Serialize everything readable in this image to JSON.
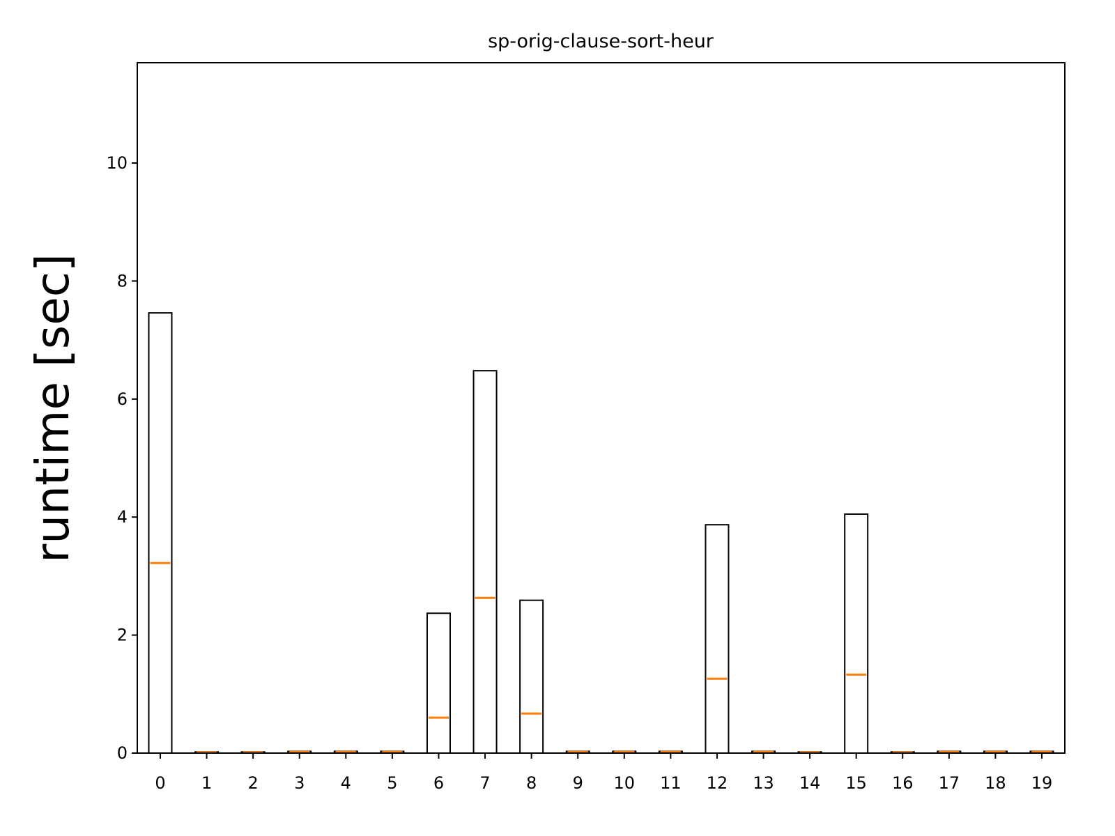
{
  "chart_data": {
    "type": "bar",
    "title": "sp-orig-clause-sort-heur",
    "xlabel": "",
    "ylabel": "runtime [sec]",
    "categories": [
      "0",
      "1",
      "2",
      "3",
      "4",
      "5",
      "6",
      "7",
      "8",
      "9",
      "10",
      "11",
      "12",
      "13",
      "14",
      "15",
      "16",
      "17",
      "18",
      "19"
    ],
    "highlighted_categories": [
      "2"
    ],
    "series": [
      {
        "values": [
          7.46,
          0.02,
          0.02,
          0.03,
          0.03,
          0.03,
          2.37,
          6.48,
          2.59,
          0.03,
          0.03,
          0.03,
          3.87,
          0.03,
          0.02,
          4.05,
          0.02,
          0.03,
          0.03,
          0.03
        ]
      },
      {
        "values": [
          3.22,
          0.01,
          0.01,
          0.02,
          0.02,
          0.02,
          0.6,
          2.63,
          0.67,
          0.02,
          0.02,
          0.02,
          1.26,
          0.02,
          0.01,
          1.33,
          0.01,
          0.02,
          0.02,
          0.02
        ]
      }
    ],
    "ylim": [
      0,
      11.7
    ],
    "yticks": [
      0,
      2,
      4,
      6,
      8,
      10
    ],
    "grid": false,
    "colors": {
      "bar_fill": "#ffffff",
      "bar_edge": "#000000",
      "median": "#ff7f0e",
      "highlight_label": "#ff0000",
      "text": "#000000"
    }
  }
}
